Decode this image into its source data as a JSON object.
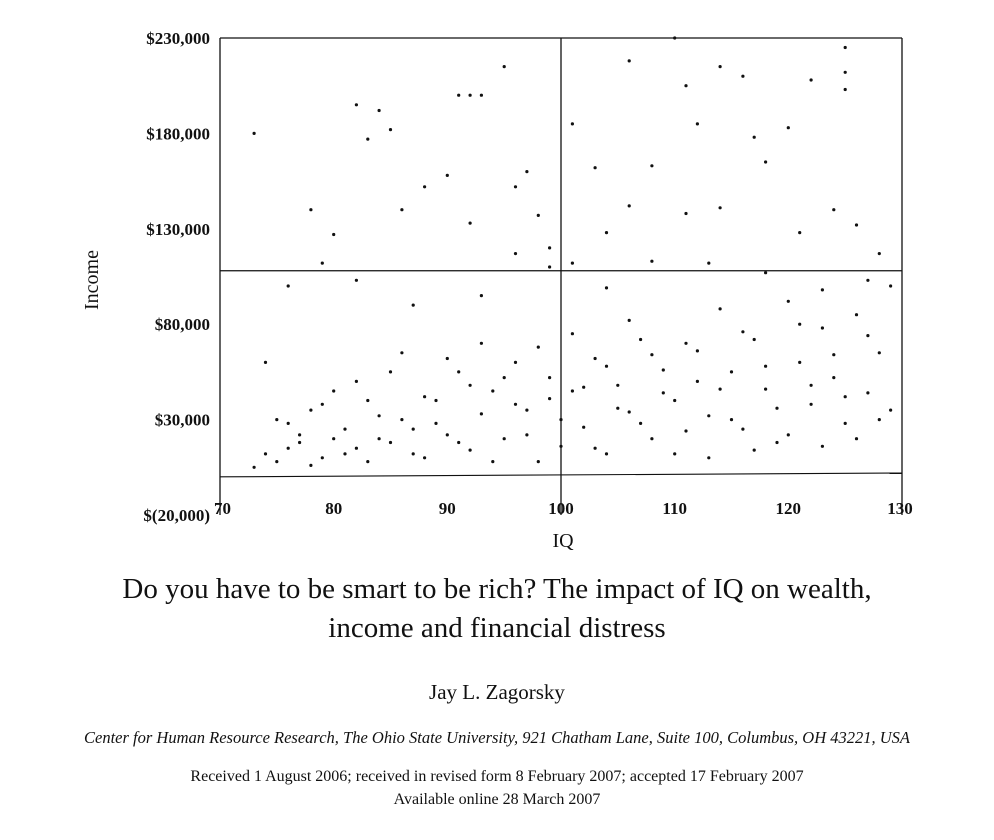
{
  "chart_data": {
    "type": "scatter",
    "xlabel": "IQ",
    "ylabel": "Income",
    "xlim": [
      70,
      130
    ],
    "ylim": [
      -20000,
      230000
    ],
    "x_ticks": [
      "70",
      "80",
      "90",
      "100",
      "110",
      "120",
      "130"
    ],
    "y_ticks": [
      "$(20,000)",
      "$30,000",
      "$80,000",
      "$130,000",
      "$180,000",
      "$230,000"
    ],
    "reference_lines": {
      "x": 100,
      "y": 108000
    },
    "grid": false,
    "legend": "none",
    "marker_color": "#111111",
    "series": [
      {
        "points": [
          [
            73,
            180000
          ],
          [
            82,
            195000
          ],
          [
            84,
            192000
          ],
          [
            85,
            182000
          ],
          [
            83,
            177000
          ],
          [
            91,
            200000
          ],
          [
            92,
            200000
          ],
          [
            93,
            200000
          ],
          [
            95,
            215000
          ],
          [
            101,
            185000
          ],
          [
            106,
            218000
          ],
          [
            111,
            205000
          ],
          [
            114,
            215000
          ],
          [
            116,
            210000
          ],
          [
            110,
            230000
          ],
          [
            122,
            208000
          ],
          [
            125,
            225000
          ],
          [
            125,
            203000
          ],
          [
            125,
            212000
          ],
          [
            120,
            183000
          ],
          [
            117,
            178000
          ],
          [
            112,
            185000
          ],
          [
            118,
            165000
          ],
          [
            106,
            142000
          ],
          [
            108,
            163000
          ],
          [
            103,
            162000
          ],
          [
            97,
            160000
          ],
          [
            96,
            152000
          ],
          [
            90,
            158000
          ],
          [
            88,
            152000
          ],
          [
            80,
            127000
          ],
          [
            78,
            140000
          ],
          [
            86,
            140000
          ],
          [
            92,
            133000
          ],
          [
            98,
            137000
          ],
          [
            104,
            128000
          ],
          [
            111,
            138000
          ],
          [
            114,
            141000
          ],
          [
            121,
            128000
          ],
          [
            124,
            140000
          ],
          [
            126,
            132000
          ],
          [
            128,
            117000
          ],
          [
            76,
            100000
          ],
          [
            79,
            112000
          ],
          [
            82,
            103000
          ],
          [
            87,
            90000
          ],
          [
            93,
            95000
          ],
          [
            96,
            117000
          ],
          [
            99,
            110000
          ],
          [
            99,
            120000
          ],
          [
            101,
            112000
          ],
          [
            104,
            99000
          ],
          [
            108,
            113000
          ],
          [
            113,
            112000
          ],
          [
            118,
            107000
          ],
          [
            123,
            98000
          ],
          [
            127,
            103000
          ],
          [
            129,
            100000
          ],
          [
            74,
            60000
          ],
          [
            75,
            30000
          ],
          [
            76,
            15000
          ],
          [
            77,
            22000
          ],
          [
            78,
            35000
          ],
          [
            79,
            10000
          ],
          [
            80,
            45000
          ],
          [
            81,
            25000
          ],
          [
            82,
            15000
          ],
          [
            83,
            40000
          ],
          [
            84,
            20000
          ],
          [
            85,
            55000
          ],
          [
            86,
            30000
          ],
          [
            87,
            12000
          ],
          [
            88,
            42000
          ],
          [
            89,
            28000
          ],
          [
            90,
            62000
          ],
          [
            91,
            18000
          ],
          [
            92,
            48000
          ],
          [
            93,
            33000
          ],
          [
            94,
            8000
          ],
          [
            95,
            52000
          ],
          [
            96,
            38000
          ],
          [
            97,
            22000
          ],
          [
            98,
            68000
          ],
          [
            99,
            41000
          ],
          [
            100,
            30000
          ],
          [
            101,
            75000
          ],
          [
            102,
            47000
          ],
          [
            103,
            15000
          ],
          [
            104,
            58000
          ],
          [
            105,
            36000
          ],
          [
            106,
            82000
          ],
          [
            107,
            28000
          ],
          [
            108,
            64000
          ],
          [
            109,
            44000
          ],
          [
            110,
            12000
          ],
          [
            111,
            70000
          ],
          [
            112,
            50000
          ],
          [
            113,
            32000
          ],
          [
            114,
            88000
          ],
          [
            115,
            55000
          ],
          [
            116,
            25000
          ],
          [
            117,
            72000
          ],
          [
            118,
            46000
          ],
          [
            119,
            18000
          ],
          [
            120,
            92000
          ],
          [
            121,
            60000
          ],
          [
            122,
            38000
          ],
          [
            123,
            78000
          ],
          [
            124,
            52000
          ],
          [
            125,
            28000
          ],
          [
            126,
            85000
          ],
          [
            127,
            44000
          ],
          [
            128,
            65000
          ],
          [
            129,
            35000
          ],
          [
            73,
            5000
          ],
          [
            74,
            12000
          ],
          [
            75,
            8000
          ],
          [
            76,
            28000
          ],
          [
            77,
            18000
          ],
          [
            78,
            6000
          ],
          [
            79,
            38000
          ],
          [
            80,
            20000
          ],
          [
            81,
            12000
          ],
          [
            82,
            50000
          ],
          [
            83,
            8000
          ],
          [
            84,
            32000
          ],
          [
            85,
            18000
          ],
          [
            86,
            65000
          ],
          [
            87,
            25000
          ],
          [
            88,
            10000
          ],
          [
            89,
            40000
          ],
          [
            90,
            22000
          ],
          [
            91,
            55000
          ],
          [
            92,
            14000
          ],
          [
            93,
            70000
          ],
          [
            94,
            45000
          ],
          [
            95,
            20000
          ],
          [
            96,
            60000
          ],
          [
            97,
            35000
          ],
          [
            98,
            8000
          ],
          [
            99,
            52000
          ],
          [
            100,
            16000
          ],
          [
            101,
            45000
          ],
          [
            102,
            26000
          ],
          [
            103,
            62000
          ],
          [
            104,
            12000
          ],
          [
            105,
            48000
          ],
          [
            106,
            34000
          ],
          [
            107,
            72000
          ],
          [
            108,
            20000
          ],
          [
            109,
            56000
          ],
          [
            110,
            40000
          ],
          [
            111,
            24000
          ],
          [
            112,
            66000
          ],
          [
            113,
            10000
          ],
          [
            114,
            46000
          ],
          [
            115,
            30000
          ],
          [
            116,
            76000
          ],
          [
            117,
            14000
          ],
          [
            118,
            58000
          ],
          [
            119,
            36000
          ],
          [
            120,
            22000
          ],
          [
            121,
            80000
          ],
          [
            122,
            48000
          ],
          [
            123,
            16000
          ],
          [
            124,
            64000
          ],
          [
            125,
            42000
          ],
          [
            126,
            20000
          ],
          [
            127,
            74000
          ],
          [
            128,
            30000
          ]
        ]
      }
    ]
  },
  "paper": {
    "title_line1": "Do you have to be smart to be rich? The impact of IQ on wealth,",
    "title_line2": "income and financial distress",
    "author": "Jay L. Zagorsky",
    "affiliation": "Center for Human Resource Research, The Ohio State University, 921 Chatham Lane, Suite 100, Columbus, OH 43221, USA",
    "received": "Received 1 August 2006; received in revised form 8 February 2007; accepted 17 February 2007",
    "online": "Available online 28 March 2007"
  }
}
